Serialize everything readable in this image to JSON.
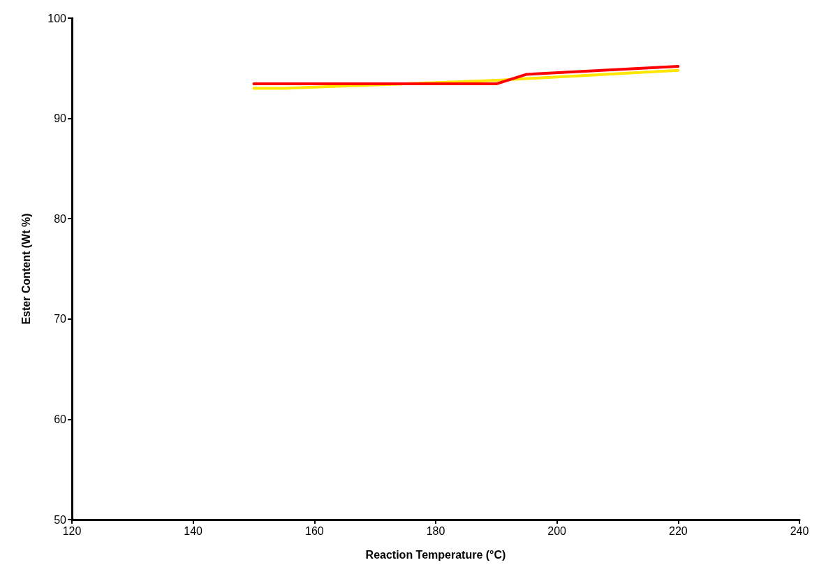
{
  "chart_data": {
    "type": "line",
    "xlabel": "Reaction Temperature (°C)",
    "ylabel": "Ester Content (Wt %)",
    "xlim": [
      120,
      240
    ],
    "xticks": [
      120,
      140,
      160,
      180,
      200,
      220,
      240
    ],
    "ylim": [
      50,
      100
    ],
    "yticks": [
      50,
      60,
      70,
      80,
      90,
      100
    ],
    "grid": false,
    "marker": "none",
    "line_style": "solid",
    "series": [
      {
        "color": "#ffe600",
        "x": [
          150,
          155,
          190,
          220
        ],
        "values": [
          93.0,
          93.0,
          93.8,
          94.8
        ]
      },
      {
        "color": "#ff0000",
        "x": [
          150,
          190,
          195,
          220
        ],
        "values": [
          93.45,
          93.45,
          94.4,
          95.2
        ]
      }
    ]
  }
}
